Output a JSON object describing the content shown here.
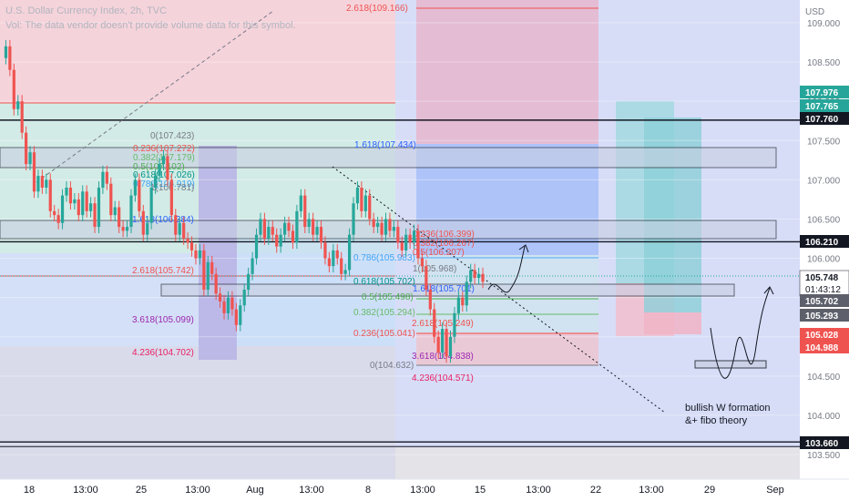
{
  "header": {
    "title": "U.S. Dollar Currency Index, 2h, TVC",
    "volume_note": "Vol: The data vendor doesn't provide volume data for this symbol."
  },
  "annotation": {
    "line1": "bullish W formation",
    "line2": "&+ fibo theory"
  },
  "chart_data": {
    "type": "candlestick",
    "symbol": "U.S. Dollar Currency Index",
    "timeframe": "2h",
    "source": "TVC",
    "y_axis_unit": "USD",
    "ylim": [
      103.1,
      109.4
    ],
    "y_ticks": [
      103.5,
      104.0,
      104.5,
      105.0,
      105.5,
      106.0,
      106.5,
      107.0,
      107.5,
      108.0,
      108.5,
      109.0
    ],
    "x_ticks": [
      "18",
      "13:00",
      "25",
      "13:00",
      "Aug",
      "13:00",
      "8",
      "13:00",
      "15",
      "13:00",
      "22",
      "13:00",
      "29",
      "Sep"
    ],
    "price_tags": [
      {
        "value": "107.976",
        "bg": "#26a69a",
        "fg": "#ffffff"
      },
      {
        "value": "107.765",
        "bg": "#26a69a",
        "fg": "#ffffff"
      },
      {
        "value": "107.760",
        "bg": "#131722",
        "fg": "#ffffff"
      },
      {
        "value": "106.210",
        "bg": "#131722",
        "fg": "#ffffff"
      },
      {
        "value": "105.748",
        "bg": "#ffffff",
        "fg": "#131722",
        "sub": "01:43:12"
      },
      {
        "value": "105.702",
        "bg": "#5d606b",
        "fg": "#ffffff"
      },
      {
        "value": "105.293",
        "bg": "#5d606b",
        "fg": "#ffffff"
      },
      {
        "value": "105.028",
        "bg": "#ef5350",
        "fg": "#ffffff"
      },
      {
        "value": "104.988",
        "bg": "#ef5350",
        "fg": "#ffffff"
      },
      {
        "value": "103.660",
        "bg": "#131722",
        "fg": "#ffffff"
      }
    ],
    "horizontal_levels": [
      107.76,
      106.21,
      103.66
    ],
    "fib_labels": [
      {
        "text": "2.618(109.166)",
        "color": "#ef5350"
      },
      {
        "text": "1.618(107.434)",
        "color": "#2962ff"
      },
      {
        "text": "0(107.423)",
        "color": "#787b86"
      },
      {
        "text": "0.236(107.272)",
        "color": "#ef5350"
      },
      {
        "text": "0.382(107.179)",
        "color": "#66bb6a"
      },
      {
        "text": "0.5(107.102)",
        "color": "#4caf50"
      },
      {
        "text": "0.618(107.026)",
        "color": "#009688"
      },
      {
        "text": "0.786(106.919)",
        "color": "#42a5f5"
      },
      {
        "text": "1(106.781)",
        "color": "#787b86"
      },
      {
        "text": "1.618(106.384)",
        "color": "#2962ff"
      },
      {
        "text": "2.618(105.742)",
        "color": "#ef5350"
      },
      {
        "text": "3.618(105.099)",
        "color": "#9c27b0"
      },
      {
        "text": "4.236(104.702)",
        "color": "#e91e63"
      },
      {
        "text": "0.236(106.399)",
        "color": "#ef5350"
      },
      {
        "text": "0.382(106.267)",
        "color": "#ef5350"
      },
      {
        "text": "0.5(106.207)",
        "color": "#ef5350"
      },
      {
        "text": "0.618(106.131)",
        "color": "#009688"
      },
      {
        "text": "0.786(105.983)",
        "color": "#42a5f5"
      },
      {
        "text": "1(105.968)",
        "color": "#787b86"
      },
      {
        "text": "0.786(105.913)",
        "color": "#42a5f5"
      },
      {
        "text": "1.618(105.701)",
        "color": "#2962ff"
      },
      {
        "text": "0.618(105.702)",
        "color": "#009688"
      },
      {
        "text": "0.5(105.498)",
        "color": "#4caf50"
      },
      {
        "text": "0.382(105.294)",
        "color": "#66bb6a"
      },
      {
        "text": "0.236(105.041)",
        "color": "#ef5350"
      },
      {
        "text": "0(104.632)",
        "color": "#787b86"
      },
      {
        "text": "2.618(105.249)",
        "color": "#ef5350"
      },
      {
        "text": "3.618(104.838)",
        "color": "#9c27b0"
      },
      {
        "text": "4.236(104.571)",
        "color": "#e91e63"
      }
    ],
    "ohlc_path": [
      108.55,
      108.7,
      108.4,
      107.9,
      108.0,
      107.6,
      107.2,
      107.35,
      106.85,
      107.05,
      106.9,
      107.0,
      106.6,
      106.55,
      106.45,
      106.8,
      106.9,
      106.7,
      106.75,
      106.55,
      106.85,
      106.6,
      106.7,
      106.4,
      106.9,
      107.1,
      106.95,
      106.55,
      106.65,
      106.4,
      106.35,
      106.4,
      106.8,
      107.0,
      106.6,
      106.3,
      106.45,
      106.9,
      107.05,
      107.2,
      107.3,
      107.0,
      106.55,
      106.3,
      106.45,
      106.25,
      106.2,
      106.1,
      106.0,
      106.1,
      105.6,
      105.95,
      105.8,
      105.55,
      105.45,
      105.3,
      105.5,
      105.35,
      105.15,
      105.4,
      105.6,
      105.8,
      106.0,
      106.3,
      106.5,
      106.25,
      106.4,
      106.3,
      106.15,
      106.3,
      106.45,
      106.35,
      106.2,
      106.6,
      106.8,
      106.4,
      106.5,
      106.3,
      106.4,
      106.2,
      106.0,
      105.9,
      106.1,
      106.0,
      105.8,
      105.85,
      106.3,
      106.7,
      106.9,
      106.6,
      106.8,
      106.5,
      106.4,
      106.45,
      106.3,
      106.5,
      106.35,
      106.4,
      106.2,
      106.1,
      106.3,
      106.2,
      106.35,
      106.0,
      105.9,
      105.6,
      105.35,
      105.0,
      104.8,
      105.1,
      104.75,
      105.0,
      105.3,
      105.5,
      105.4,
      105.7,
      105.85,
      105.75,
      105.8,
      105.7
    ]
  }
}
